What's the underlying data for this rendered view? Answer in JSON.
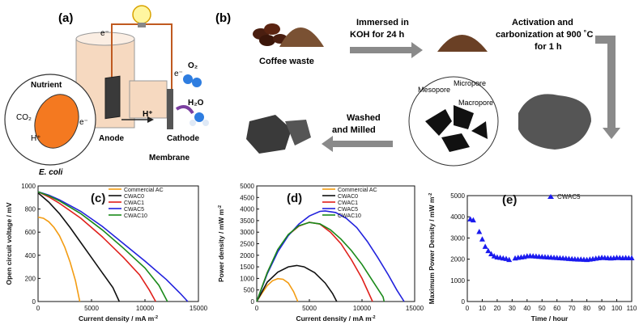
{
  "panel_a": {
    "label": "(a)",
    "electron_left": "e⁻",
    "electron_right": "e⁻",
    "nutrient": "Nutrient",
    "co2": "CO₂",
    "e_minus_inner": "e⁻",
    "h_plus_inner": "H⁺",
    "ecoli": "E. coli",
    "anode": "Anode",
    "h_plus": "H⁺",
    "membrane": "Membrane",
    "cathode": "Cathode",
    "o2": "O₂",
    "h2o": "H₂O"
  },
  "panel_b": {
    "label": "(b)",
    "coffee_waste": "Coffee waste",
    "step1_line1": "Immersed in",
    "step1_line2": "KOH for 24 h",
    "step2_line1": "Activation  and",
    "step2_line2": "carbonization at 900 ˚C",
    "step2_line3": "for 1 h",
    "mesopore": "Mesopore",
    "micropore": "Micropore",
    "macropore": "Macropore",
    "step3_line1": "Washed",
    "step3_line2": "and Milled"
  },
  "chart_data": [
    {
      "type": "line",
      "panel_label": "(c)",
      "xlabel": "Current density / mA m",
      "xlabel_sup": "-2",
      "ylabel": "Open circuit voltage / mV",
      "xlim": [
        0,
        15000
      ],
      "ylim": [
        0,
        1000
      ],
      "xticks": [
        "0",
        "5000",
        "10000",
        "15000"
      ],
      "yticks": [
        "0",
        "200",
        "400",
        "600",
        "800",
        "1000"
      ],
      "series": [
        {
          "name": "Commercial AC",
          "color": "#f39c12",
          "points": [
            [
              0,
              730
            ],
            [
              500,
              720
            ],
            [
              1000,
              690
            ],
            [
              1500,
              640
            ],
            [
              2000,
              570
            ],
            [
              2500,
              470
            ],
            [
              3000,
              340
            ],
            [
              3500,
              180
            ],
            [
              3900,
              0
            ]
          ]
        },
        {
          "name": "CWAC0",
          "color": "#111111",
          "points": [
            [
              0,
              940
            ],
            [
              1000,
              860
            ],
            [
              2000,
              760
            ],
            [
              3000,
              640
            ],
            [
              4000,
              510
            ],
            [
              5000,
              380
            ],
            [
              6000,
              250
            ],
            [
              7000,
              120
            ],
            [
              7600,
              0
            ]
          ]
        },
        {
          "name": "CWAC1",
          "color": "#e0201b",
          "points": [
            [
              0,
              950
            ],
            [
              1000,
              905
            ],
            [
              2000,
              850
            ],
            [
              4000,
              720
            ],
            [
              6000,
              560
            ],
            [
              8000,
              380
            ],
            [
              9500,
              230
            ],
            [
              10400,
              100
            ],
            [
              11000,
              0
            ]
          ]
        },
        {
          "name": "CWAC5",
          "color": "#2222dd",
          "points": [
            [
              0,
              950
            ],
            [
              1000,
              920
            ],
            [
              2000,
              880
            ],
            [
              4000,
              780
            ],
            [
              6000,
              650
            ],
            [
              8000,
              500
            ],
            [
              10000,
              350
            ],
            [
              12000,
              190
            ],
            [
              13300,
              70
            ],
            [
              14000,
              0
            ]
          ]
        },
        {
          "name": "CWAC10",
          "color": "#1a8a1a",
          "points": [
            [
              0,
              950
            ],
            [
              1000,
              915
            ],
            [
              2000,
              870
            ],
            [
              4000,
              760
            ],
            [
              6000,
              620
            ],
            [
              8000,
              460
            ],
            [
              10000,
              290
            ],
            [
              11300,
              140
            ],
            [
              12100,
              0
            ]
          ]
        }
      ]
    },
    {
      "type": "line",
      "panel_label": "(d)",
      "xlabel": "Current density / mA m",
      "xlabel_sup": "-2",
      "ylabel": "Power density / mW m",
      "ylabel_sup": "-2",
      "xlim": [
        0,
        15000
      ],
      "ylim": [
        0,
        5000
      ],
      "xticks": [
        "0",
        "5000",
        "10000",
        "15000"
      ],
      "yticks": [
        "0",
        "500",
        "1000",
        "1500",
        "2000",
        "2500",
        "3000",
        "3500",
        "4000",
        "4500",
        "5000"
      ],
      "series": [
        {
          "name": "Commercial AC",
          "color": "#f39c12",
          "points": [
            [
              0,
              0
            ],
            [
              500,
              360
            ],
            [
              1000,
              690
            ],
            [
              1500,
              900
            ],
            [
              2000,
              990
            ],
            [
              2500,
              960
            ],
            [
              3000,
              800
            ],
            [
              3500,
              430
            ],
            [
              3900,
              0
            ]
          ]
        },
        {
          "name": "CWAC0",
          "color": "#111111",
          "points": [
            [
              0,
              0
            ],
            [
              1000,
              840
            ],
            [
              2000,
              1270
            ],
            [
              3000,
              1500
            ],
            [
              3800,
              1560
            ],
            [
              4500,
              1500
            ],
            [
              5500,
              1250
            ],
            [
              6500,
              800
            ],
            [
              7200,
              350
            ],
            [
              7600,
              0
            ]
          ]
        },
        {
          "name": "CWAC1",
          "color": "#e0201b",
          "points": [
            [
              0,
              0
            ],
            [
              1000,
              1250
            ],
            [
              2000,
              2200
            ],
            [
              3000,
              2880
            ],
            [
              4000,
              3260
            ],
            [
              5000,
              3430
            ],
            [
              6000,
              3350
            ],
            [
              7000,
              3000
            ],
            [
              8000,
              2500
            ],
            [
              9000,
              1800
            ],
            [
              10000,
              1000
            ],
            [
              11000,
              0
            ]
          ]
        },
        {
          "name": "CWAC5",
          "color": "#2222dd",
          "points": [
            [
              0,
              0
            ],
            [
              1000,
              1200
            ],
            [
              2000,
              2150
            ],
            [
              3000,
              2850
            ],
            [
              4000,
              3350
            ],
            [
              5000,
              3700
            ],
            [
              6000,
              3900
            ],
            [
              6500,
              3920
            ],
            [
              7500,
              3850
            ],
            [
              8500,
              3600
            ],
            [
              9500,
              3200
            ],
            [
              10500,
              2600
            ],
            [
              11500,
              1900
            ],
            [
              12500,
              1150
            ],
            [
              13300,
              500
            ],
            [
              14000,
              0
            ]
          ]
        },
        {
          "name": "CWAC10",
          "color": "#1a8a1a",
          "points": [
            [
              0,
              0
            ],
            [
              1000,
              1250
            ],
            [
              2000,
              2250
            ],
            [
              3000,
              2900
            ],
            [
              4000,
              3280
            ],
            [
              5000,
              3420
            ],
            [
              6000,
              3360
            ],
            [
              7000,
              3100
            ],
            [
              8000,
              2700
            ],
            [
              9000,
              2200
            ],
            [
              10000,
              1600
            ],
            [
              11000,
              900
            ],
            [
              12000,
              200
            ],
            [
              12100,
              0
            ]
          ]
        }
      ]
    },
    {
      "type": "scatter",
      "panel_label": "(e)",
      "xlabel": "Time / hour",
      "ylabel": "Maximum Power Density / mW m",
      "ylabel_sup": "-2",
      "xlim": [
        0,
        110
      ],
      "ylim": [
        0,
        5000
      ],
      "xticks": [
        "0",
        "10",
        "20",
        "30",
        "40",
        "50",
        "60",
        "70",
        "80",
        "90",
        "100",
        "110"
      ],
      "yticks": [
        "0",
        "1000",
        "2000",
        "3000",
        "4000",
        "5000"
      ],
      "series": [
        {
          "name": "CWAC5",
          "color": "#1a1aee",
          "points": [
            [
              2,
              3900
            ],
            [
              4,
              3850
            ],
            [
              8,
              3300
            ],
            [
              10,
              2950
            ],
            [
              12,
              2600
            ],
            [
              14,
              2400
            ],
            [
              16,
              2250
            ],
            [
              18,
              2150
            ],
            [
              20,
              2100
            ],
            [
              22,
              2080
            ],
            [
              24,
              2050
            ],
            [
              26,
              2030
            ],
            [
              28,
              1980
            ],
            [
              32,
              2050
            ],
            [
              34,
              2080
            ],
            [
              36,
              2100
            ],
            [
              38,
              2120
            ],
            [
              40,
              2150
            ],
            [
              42,
              2160
            ],
            [
              44,
              2150
            ],
            [
              46,
              2140
            ],
            [
              48,
              2130
            ],
            [
              50,
              2120
            ],
            [
              52,
              2110
            ],
            [
              54,
              2100
            ],
            [
              56,
              2090
            ],
            [
              58,
              2080
            ],
            [
              60,
              2070
            ],
            [
              62,
              2060
            ],
            [
              64,
              2050
            ],
            [
              66,
              2040
            ],
            [
              68,
              2030
            ],
            [
              70,
              2020
            ],
            [
              72,
              2010
            ],
            [
              74,
              2000
            ],
            [
              76,
              2000
            ],
            [
              78,
              1990
            ],
            [
              80,
              1980
            ],
            [
              82,
              2000
            ],
            [
              84,
              2020
            ],
            [
              86,
              2040
            ],
            [
              88,
              2060
            ],
            [
              90,
              2080
            ],
            [
              92,
              2070
            ],
            [
              94,
              2060
            ],
            [
              96,
              2050
            ],
            [
              98,
              2060
            ],
            [
              100,
              2080
            ],
            [
              102,
              2070
            ],
            [
              104,
              2060
            ],
            [
              106,
              2070
            ],
            [
              108,
              2060
            ],
            [
              110,
              2060
            ]
          ]
        }
      ]
    }
  ]
}
